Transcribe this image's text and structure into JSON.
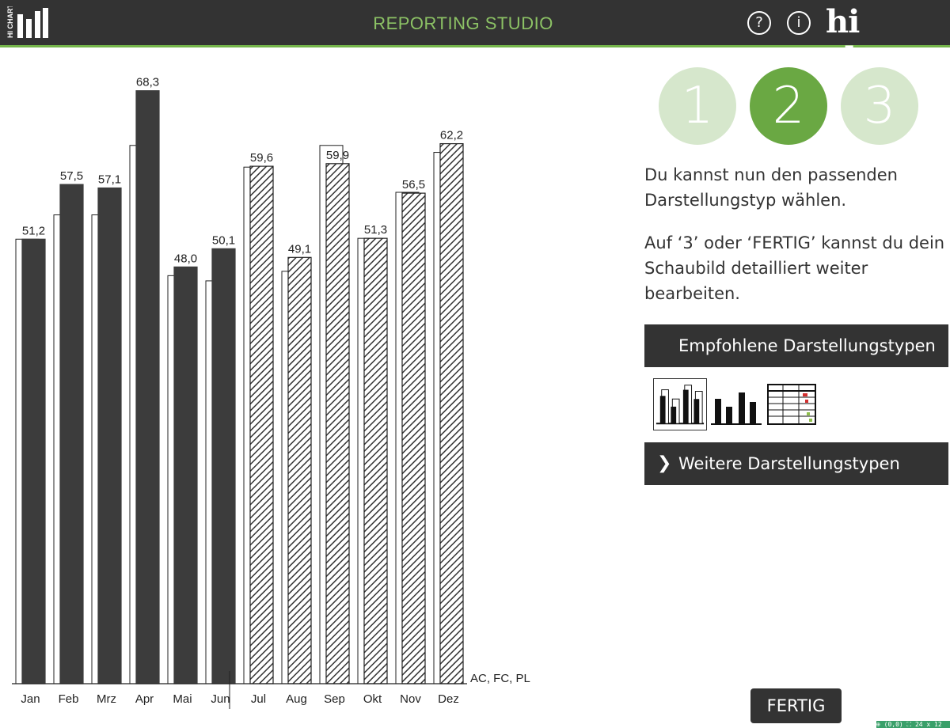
{
  "app": {
    "title": "REPORTING STUDIO",
    "brand": "hi chart",
    "logo_text": "HI CHART",
    "help_glyph": "?",
    "info_glyph": "i"
  },
  "steps": [
    {
      "label": "1",
      "active": false
    },
    {
      "label": "2",
      "active": true
    },
    {
      "label": "3",
      "active": false
    }
  ],
  "instructions": {
    "line1": "Du kannst nun den passenden Darstellungstyp wählen.",
    "line2": "Auf ‘3’ oder ‘FERTIG’ kannst du dein Schaubild detailliert weiter bearbeiten."
  },
  "panels": {
    "recommended": "Empfohlene Darstellungstypen",
    "more": "Weitere Darstellungstypen",
    "more_icon": "chevron-right-icon"
  },
  "thumbnails": [
    {
      "name": "bar-chart-with-plan-thumbnail",
      "selected": true
    },
    {
      "name": "simple-bar-chart-thumbnail",
      "selected": false
    },
    {
      "name": "table-chart-thumbnail",
      "selected": false
    }
  ],
  "done_button": "FERTIG",
  "status_bar": "⊕ (0,0) ⛶ 24 x 12",
  "colors": {
    "header_bg": "#333333",
    "accent_green": "#6aa843",
    "light_green": "#d6e7cc",
    "title_green": "#8cc265",
    "bar_dark": "#3c3c3c"
  },
  "chart_data": {
    "type": "bar",
    "categories": [
      "Jan",
      "Feb",
      "Mrz",
      "Apr",
      "Mai",
      "Jun",
      "Jul",
      "Aug",
      "Sep",
      "Okt",
      "Nov",
      "Dez"
    ],
    "series": [
      {
        "name": "AC",
        "values": [
          51.2,
          57.5,
          57.1,
          68.3,
          48.0,
          50.1,
          null,
          null,
          null,
          null,
          null,
          null
        ]
      },
      {
        "name": "FC",
        "values": [
          null,
          null,
          null,
          null,
          null,
          null,
          59.6,
          49.1,
          59.9,
          51.3,
          56.5,
          62.2
        ]
      },
      {
        "name": "PL",
        "values": [
          51.2,
          54.0,
          54.0,
          62.0,
          47.0,
          46.4,
          59.5,
          47.5,
          62.0,
          51.3,
          56.6,
          61.2
        ]
      }
    ],
    "data_labels": [
      "51,2",
      "57,5",
      "57,1",
      "68,3",
      "48,0",
      "50,1",
      "59,6",
      "49,1",
      "59,9",
      "51,3",
      "56,5",
      "62,2"
    ],
    "legend_label": "AC, FC, PL",
    "ylim": [
      0,
      70
    ],
    "grid": false
  }
}
